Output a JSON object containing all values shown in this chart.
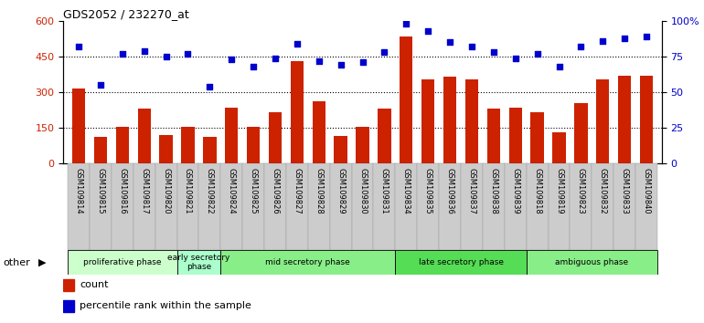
{
  "title": "GDS2052 / 232270_at",
  "samples": [
    "GSM109814",
    "GSM109815",
    "GSM109816",
    "GSM109817",
    "GSM109820",
    "GSM109821",
    "GSM109822",
    "GSM109824",
    "GSM109825",
    "GSM109826",
    "GSM109827",
    "GSM109828",
    "GSM109829",
    "GSM109830",
    "GSM109831",
    "GSM109834",
    "GSM109835",
    "GSM109836",
    "GSM109837",
    "GSM109838",
    "GSM109839",
    "GSM109818",
    "GSM109819",
    "GSM109823",
    "GSM109832",
    "GSM109833",
    "GSM109840"
  ],
  "counts": [
    315,
    110,
    155,
    230,
    120,
    155,
    110,
    235,
    155,
    215,
    430,
    260,
    115,
    155,
    230,
    535,
    355,
    365,
    355,
    230,
    235,
    215,
    130,
    255,
    355,
    370,
    370
  ],
  "percentile_ranks": [
    82,
    55,
    77,
    79,
    75,
    77,
    54,
    73,
    68,
    74,
    84,
    72,
    69,
    71,
    78,
    98,
    93,
    85,
    82,
    78,
    74,
    77,
    68,
    82,
    86,
    88,
    89
  ],
  "bar_color": "#cc2200",
  "dot_color": "#0000cc",
  "ylim_left": [
    0,
    600
  ],
  "ylim_right": [
    0,
    100
  ],
  "yticks_left": [
    0,
    150,
    300,
    450,
    600
  ],
  "yticks_right": [
    0,
    25,
    50,
    75,
    100
  ],
  "phases": [
    {
      "label": "proliferative phase",
      "start": 0,
      "end": 5,
      "color": "#ccffcc"
    },
    {
      "label": "early secretory\nphase",
      "start": 5,
      "end": 7,
      "color": "#aaffcc"
    },
    {
      "label": "mid secretory phase",
      "start": 7,
      "end": 15,
      "color": "#88ee88"
    },
    {
      "label": "late secretory phase",
      "start": 15,
      "end": 21,
      "color": "#55dd55"
    },
    {
      "label": "ambiguous phase",
      "start": 21,
      "end": 27,
      "color": "#88ee88"
    }
  ],
  "left_label": "other",
  "legend_bar_label": "count",
  "legend_dot_label": "percentile rank within the sample"
}
